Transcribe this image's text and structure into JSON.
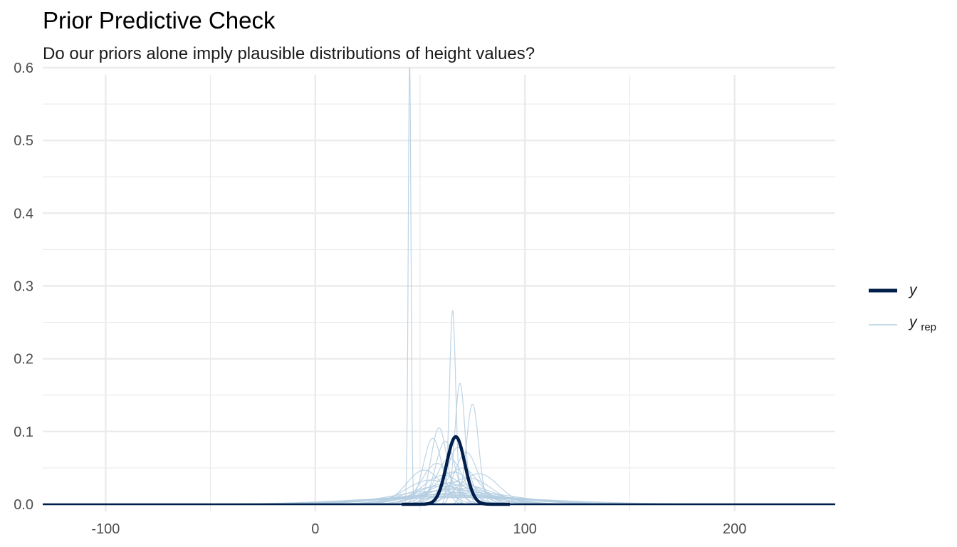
{
  "chart_data": {
    "type": "line",
    "title": "Prior Predictive Check",
    "subtitle": "Do our priors alone imply plausible distributions of height values?",
    "xlabel": "",
    "ylabel": "",
    "xlim": [
      -130,
      248
    ],
    "ylim": [
      0,
      0.6
    ],
    "x_ticks": [
      -100,
      0,
      100,
      200
    ],
    "x_tick_labels": [
      "-100",
      "0",
      "100",
      "200"
    ],
    "y_ticks": [
      0.0,
      0.1,
      0.2,
      0.3,
      0.4,
      0.5,
      0.6
    ],
    "y_tick_labels": [
      "0.0",
      "0.1",
      "0.2",
      "0.3",
      "0.4",
      "0.5",
      "0.6"
    ],
    "grid": true,
    "legend_position": "right",
    "legend": [
      {
        "key": "y",
        "label": "y",
        "sub": ""
      },
      {
        "key": "yrep",
        "label": "y",
        "sub": "rep"
      }
    ],
    "colors": {
      "y": "#011f4b",
      "yrep": "#b3cde0",
      "grid": "#ebebeb",
      "axis": "#011f4b"
    },
    "y_density": {
      "name": "y",
      "mean": 67,
      "sd": 4.3
    },
    "yrep_densities": [
      {
        "mean": 45,
        "sd": 0.66
      },
      {
        "mean": 65.5,
        "sd": 1.5
      },
      {
        "mean": 69,
        "sd": 2.4
      },
      {
        "mean": 75,
        "sd": 2.9
      },
      {
        "mean": 59,
        "sd": 3.8
      },
      {
        "mean": 56,
        "sd": 4.4
      },
      {
        "mean": 62,
        "sd": 4.6
      },
      {
        "mean": 68,
        "sd": 5.1
      },
      {
        "mean": 72,
        "sd": 5.6
      },
      {
        "mean": 64,
        "sd": 6.3
      },
      {
        "mean": 58,
        "sd": 7.1
      },
      {
        "mean": 70,
        "sd": 8.0
      },
      {
        "mean": 66,
        "sd": 9.0
      },
      {
        "mean": 61,
        "sd": 10.0
      },
      {
        "mean": 73,
        "sd": 11.0
      },
      {
        "mean": 55,
        "sd": 12.0
      },
      {
        "mean": 67,
        "sd": 13.0
      },
      {
        "mean": 63,
        "sd": 14.0
      },
      {
        "mean": 70,
        "sd": 15.0
      },
      {
        "mean": 60,
        "sd": 16.0
      },
      {
        "mean": 68,
        "sd": 18.0
      },
      {
        "mean": 65,
        "sd": 20.0
      },
      {
        "mean": 58,
        "sd": 22.0
      },
      {
        "mean": 72,
        "sd": 24.0
      },
      {
        "mean": 66,
        "sd": 27.0
      },
      {
        "mean": 62,
        "sd": 30.0
      },
      {
        "mean": 69,
        "sd": 33.0
      },
      {
        "mean": 64,
        "sd": 36.0
      },
      {
        "mean": 60,
        "sd": 40.0
      },
      {
        "mean": 70,
        "sd": 44.0
      },
      {
        "mean": 52,
        "sd": 8.5
      },
      {
        "mean": 78,
        "sd": 9.5
      }
    ]
  }
}
